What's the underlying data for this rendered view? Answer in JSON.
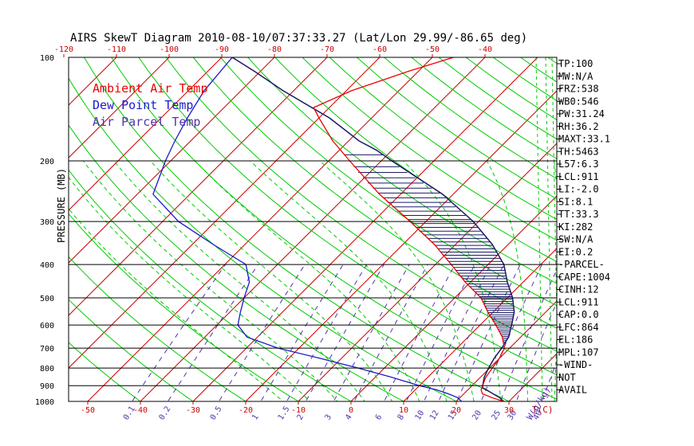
{
  "chart_data": {
    "type": "line",
    "title": "AIRS SkewT Diagram 2010-08-10/07:37:33.27 (Lat/Lon 29.99/-86.65 deg)",
    "ylabel": "PRESSURE (MB)",
    "xlabel_bottom": "T(C)",
    "mixing_ratio_unit": "W(g/kg)",
    "colors": {
      "frame": "#000000",
      "isotherm": "#cc0000",
      "dry_adiabat": "#00cc00",
      "moist_adiabat": "#00cc00",
      "mixing_ratio": "#5533aa",
      "ambient": "#ee0000",
      "dewpoint": "#1a1acc",
      "parcel": "#1a1a66",
      "axis_label": "#cc0000",
      "mixing_label": "#5533aa"
    },
    "pressure_levels": [
      100,
      200,
      300,
      400,
      500,
      600,
      700,
      800,
      900,
      1000
    ],
    "pressure_labels": [
      "100",
      "200",
      "300",
      "400",
      "500",
      "600",
      "700",
      "800",
      "900",
      "1000"
    ],
    "top_temp_ticks": [
      -120,
      -110,
      -100,
      -90,
      -80,
      -70,
      -60,
      -50,
      -40
    ],
    "top_temp_labels": [
      "-120",
      "-110",
      "-100",
      "-90",
      "-80",
      "-70",
      "-60",
      "-50",
      "-40"
    ],
    "bottom_temp_ticks": [
      -50,
      -40,
      -30,
      -20,
      -10,
      0,
      10,
      20,
      30
    ],
    "bottom_temp_labels": [
      "-50",
      "-40",
      "-30",
      "-20",
      "-10",
      "0",
      "10",
      "20",
      "30"
    ],
    "mixing_ratio_values": [
      0.1,
      0.2,
      0.5,
      1,
      1.5,
      2,
      3,
      4,
      6,
      8,
      10,
      12,
      15,
      20,
      25,
      30,
      40
    ],
    "mixing_ratio_labels": [
      "0.1",
      "0.2",
      "0.5",
      "1",
      "1.5",
      "2",
      "3",
      "4",
      "6",
      "8",
      "10",
      "12",
      "15",
      "20",
      "25",
      "30",
      "40"
    ],
    "legend": [
      {
        "label": "Ambient Air Temp",
        "color": "#ee0000"
      },
      {
        "label": "Dew Point Temp",
        "color": "#1a1acc"
      },
      {
        "label": "Air Parcel Temp",
        "color": "#5533aa"
      }
    ],
    "legend_position": "top-left",
    "series": [
      {
        "key": "ambient",
        "points": [
          [
            1000,
            29
          ],
          [
            975,
            26
          ],
          [
            950,
            23.5
          ],
          [
            925,
            22.5
          ],
          [
            900,
            22
          ],
          [
            850,
            21
          ],
          [
            800,
            20.5
          ],
          [
            750,
            20
          ],
          [
            700,
            19
          ],
          [
            650,
            16.5
          ],
          [
            600,
            13
          ],
          [
            550,
            9
          ],
          [
            500,
            5
          ],
          [
            450,
            -1
          ],
          [
            400,
            -7
          ],
          [
            350,
            -14
          ],
          [
            300,
            -23
          ],
          [
            250,
            -34
          ],
          [
            200,
            -46
          ],
          [
            175,
            -53
          ],
          [
            150,
            -60
          ],
          [
            140,
            -63
          ],
          [
            125,
            -59
          ],
          [
            110,
            -52
          ],
          [
            100,
            -46
          ]
        ]
      },
      {
        "key": "dewpoint",
        "points": [
          [
            1000,
            21
          ],
          [
            975,
            19.5
          ],
          [
            950,
            17
          ],
          [
            925,
            14
          ],
          [
            900,
            10
          ],
          [
            850,
            3
          ],
          [
            800,
            -5
          ],
          [
            750,
            -14
          ],
          [
            700,
            -24
          ],
          [
            650,
            -32
          ],
          [
            600,
            -36
          ],
          [
            550,
            -38
          ],
          [
            500,
            -40
          ],
          [
            450,
            -42
          ],
          [
            400,
            -46
          ],
          [
            350,
            -56
          ],
          [
            300,
            -67
          ],
          [
            250,
            -77
          ],
          [
            200,
            -81
          ],
          [
            175,
            -83
          ],
          [
            150,
            -85
          ],
          [
            125,
            -87
          ],
          [
            100,
            -88
          ]
        ]
      },
      {
        "key": "parcel",
        "points": [
          [
            1000,
            29
          ],
          [
            975,
            27.5
          ],
          [
            950,
            25.5
          ],
          [
            925,
            23.5
          ],
          [
            911,
            22.3
          ],
          [
            900,
            22
          ],
          [
            850,
            20.7
          ],
          [
            800,
            19.8
          ],
          [
            750,
            19
          ],
          [
            700,
            18.5
          ],
          [
            650,
            17.7
          ],
          [
            600,
            16
          ],
          [
            550,
            14
          ],
          [
            500,
            11
          ],
          [
            450,
            7
          ],
          [
            400,
            3
          ],
          [
            350,
            -3
          ],
          [
            300,
            -11
          ],
          [
            250,
            -22
          ],
          [
            200,
            -38
          ],
          [
            186,
            -43
          ],
          [
            175,
            -48
          ],
          [
            150,
            -58
          ],
          [
            125,
            -72
          ],
          [
            110,
            -81
          ],
          [
            100,
            -88
          ]
        ]
      }
    ],
    "cape_hatch": {
      "from_pressure": 864,
      "to_pressure": 186
    },
    "wind_column": {
      "from_pressure": 1000,
      "to_pressure": 100
    },
    "indices": [
      "TP:100",
      "MW:N/A",
      "FRZ:538",
      "WB0:546",
      "PW:31.24",
      "RH:36.2",
      "MAXT:33.1",
      "TH:5463",
      "L57:6.3",
      "LCL:911",
      "LI:-2.0",
      "SI:8.1",
      "TT:33.3",
      "KI:282",
      "SW:N/A",
      "EI:0.2",
      "-PARCEL-",
      "CAPE:1004",
      "CINH:12",
      "LCL:911",
      "CAP:0.0",
      "LFC:864",
      "EL:186",
      "MPL:107",
      "-WIND-",
      "NOT",
      "AVAIL"
    ]
  }
}
